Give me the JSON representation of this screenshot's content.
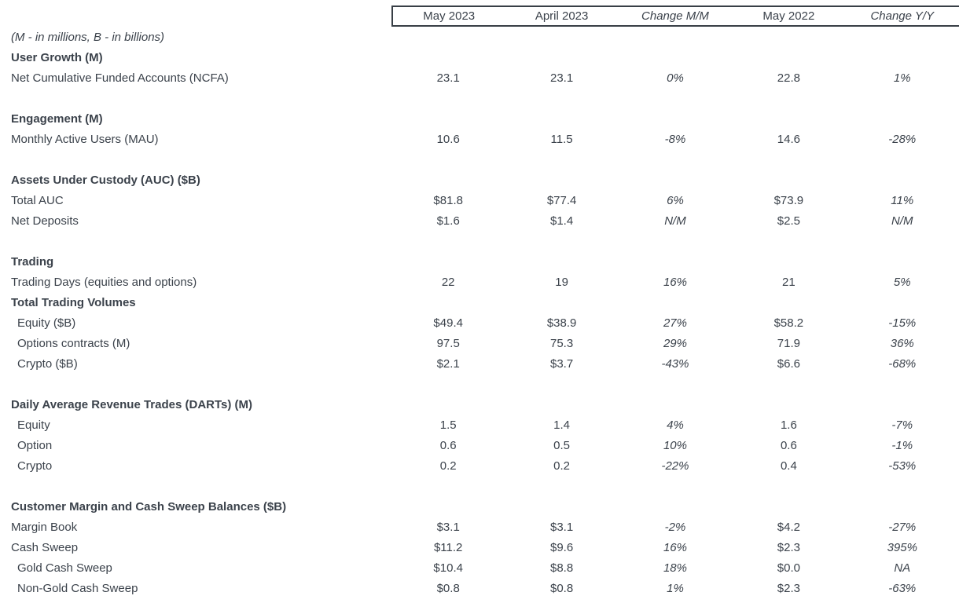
{
  "colors": {
    "text": "#3b424b",
    "border": "#383f46",
    "background": "#ffffff"
  },
  "table": {
    "columns": [
      {
        "label": "May 2023",
        "italic": false
      },
      {
        "label": "April 2023",
        "italic": false
      },
      {
        "label": "Change M/M",
        "italic": true
      },
      {
        "label": "May 2022",
        "italic": false
      },
      {
        "label": "Change Y/Y",
        "italic": true
      }
    ],
    "rows": [
      {
        "type": "note",
        "label": "(M - in millions, B - in billions)"
      },
      {
        "type": "section",
        "label": "User Growth (M)"
      },
      {
        "type": "data",
        "label": "Net Cumulative Funded Accounts (NCFA)",
        "values": [
          "23.1",
          "23.1",
          "0%",
          "22.8",
          "1%"
        ]
      },
      {
        "type": "spacer"
      },
      {
        "type": "section",
        "label": "Engagement (M)"
      },
      {
        "type": "data",
        "label": "Monthly Active Users (MAU)",
        "values": [
          "10.6",
          "11.5",
          "-8%",
          "14.6",
          "-28%"
        ]
      },
      {
        "type": "spacer"
      },
      {
        "type": "section",
        "label": "Assets Under Custody (AUC) ($B)"
      },
      {
        "type": "data",
        "label": "Total AUC",
        "values": [
          "$81.8",
          "$77.4",
          "6%",
          "$73.9",
          "11%"
        ]
      },
      {
        "type": "data",
        "label": "Net Deposits",
        "values": [
          "$1.6",
          "$1.4",
          "N/M",
          "$2.5",
          "N/M"
        ]
      },
      {
        "type": "spacer"
      },
      {
        "type": "section",
        "label": "Trading"
      },
      {
        "type": "data",
        "label": "Trading Days (equities and options)",
        "values": [
          "22",
          "19",
          "16%",
          "21",
          "5%"
        ]
      },
      {
        "type": "section",
        "label": "Total Trading Volumes"
      },
      {
        "type": "data",
        "indent": true,
        "label": "Equity ($B)",
        "values": [
          "$49.4",
          "$38.9",
          "27%",
          "$58.2",
          "-15%"
        ]
      },
      {
        "type": "data",
        "indent": true,
        "label": "Options contracts (M)",
        "values": [
          "97.5",
          "75.3",
          "29%",
          "71.9",
          "36%"
        ]
      },
      {
        "type": "data",
        "indent": true,
        "label": "Crypto ($B)",
        "values": [
          "$2.1",
          "$3.7",
          "-43%",
          "$6.6",
          "-68%"
        ]
      },
      {
        "type": "spacer"
      },
      {
        "type": "section",
        "label": "Daily Average Revenue Trades (DARTs) (M)"
      },
      {
        "type": "data",
        "indent": true,
        "label": "Equity",
        "values": [
          "1.5",
          "1.4",
          "4%",
          "1.6",
          "-7%"
        ]
      },
      {
        "type": "data",
        "indent": true,
        "label": "Option",
        "values": [
          "0.6",
          "0.5",
          "10%",
          "0.6",
          "-1%"
        ]
      },
      {
        "type": "data",
        "indent": true,
        "label": "Crypto",
        "values": [
          "0.2",
          "0.2",
          "-22%",
          "0.4",
          "-53%"
        ]
      },
      {
        "type": "spacer"
      },
      {
        "type": "section",
        "label": "Customer Margin and Cash Sweep Balances ($B)"
      },
      {
        "type": "data",
        "label": "Margin Book",
        "values": [
          "$3.1",
          "$3.1",
          "-2%",
          "$4.2",
          "-27%"
        ]
      },
      {
        "type": "data",
        "label": "Cash Sweep",
        "values": [
          "$11.2",
          "$9.6",
          "16%",
          "$2.3",
          "395%"
        ]
      },
      {
        "type": "data",
        "indent": true,
        "label": "Gold Cash Sweep",
        "values": [
          "$10.4",
          "$8.8",
          "18%",
          "$0.0",
          "NA"
        ]
      },
      {
        "type": "data",
        "indent": true,
        "label": "Non-Gold Cash Sweep",
        "values": [
          "$0.8",
          "$0.8",
          "1%",
          "$2.3",
          "-63%"
        ]
      }
    ]
  }
}
